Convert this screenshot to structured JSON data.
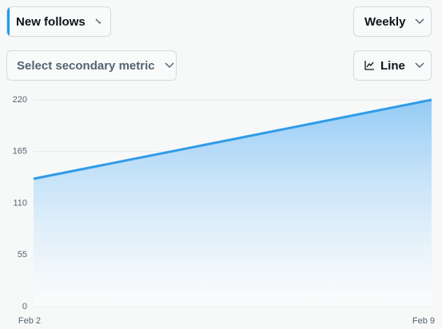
{
  "controls": {
    "primary_metric": "New follows",
    "period": "Weekly",
    "secondary_metric": "Select secondary metric",
    "chart_style": "Line"
  },
  "chart_data": {
    "type": "area",
    "categories": [
      "Feb 2",
      "Feb 9"
    ],
    "values": [
      136,
      220
    ],
    "color": "#2f9be8",
    "ylim": [
      0,
      220
    ],
    "yticks": [
      0,
      55,
      110,
      165,
      220
    ],
    "grid": true
  }
}
